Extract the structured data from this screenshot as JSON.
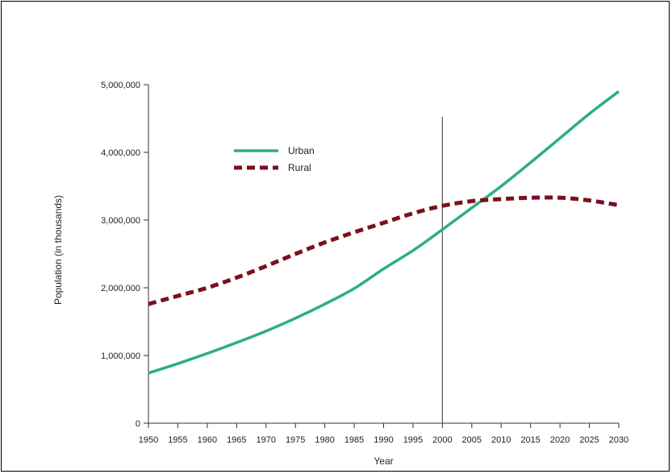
{
  "chart_data": {
    "type": "line",
    "xlabel": "Year",
    "ylabel": "Population (in thousands)",
    "x": [
      1950,
      1955,
      1960,
      1965,
      1970,
      1975,
      1980,
      1985,
      1990,
      1995,
      2000,
      2005,
      2010,
      2015,
      2020,
      2025,
      2030
    ],
    "x_tick_labels": [
      "1950",
      "1955",
      "1960",
      "1965",
      "1970",
      "1975",
      "1980",
      "1985",
      "1990",
      "1995",
      "2000",
      "2005",
      "2010",
      "2015",
      "2020",
      "2025",
      "2030"
    ],
    "ylim": [
      0,
      5000000
    ],
    "y_tick_labels": [
      "0",
      "1,000,000",
      "2,000,000",
      "3,000,000",
      "4,000,000",
      "5,000,000"
    ],
    "y_ticks": [
      0,
      1000000,
      2000000,
      3000000,
      4000000,
      5000000
    ],
    "series": [
      {
        "name": "Urban",
        "color": "#2bb07f",
        "style": "solid",
        "values": [
          740000,
          880000,
          1030000,
          1190000,
          1360000,
          1550000,
          1760000,
          1990000,
          2280000,
          2550000,
          2860000,
          3180000,
          3500000,
          3850000,
          4210000,
          4570000,
          4900000
        ]
      },
      {
        "name": "Rural",
        "color": "#7a1020",
        "style": "dashed",
        "values": [
          1760000,
          1880000,
          2000000,
          2150000,
          2320000,
          2500000,
          2670000,
          2820000,
          2960000,
          3100000,
          3210000,
          3280000,
          3310000,
          3330000,
          3330000,
          3290000,
          3220000
        ]
      }
    ],
    "reference_line_x": 2000,
    "legend_position": "top-left",
    "grid": false
  }
}
